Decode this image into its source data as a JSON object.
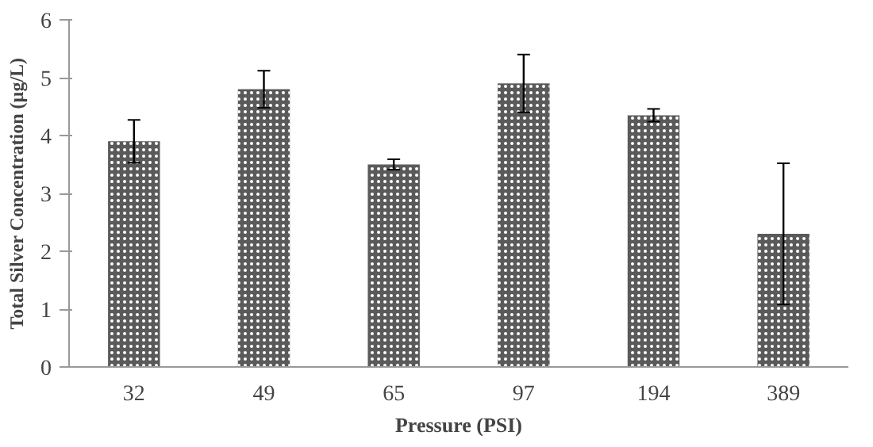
{
  "chart_data": {
    "type": "bar",
    "xlabel": "Pressure (PSI)",
    "ylabel": "Total Silver Concentration (µg/L)",
    "categories": [
      "32",
      "49",
      "65",
      "97",
      "194",
      "389"
    ],
    "values": [
      3.9,
      4.8,
      3.5,
      4.9,
      4.35,
      2.3
    ],
    "errors": [
      0.37,
      0.32,
      0.09,
      0.5,
      0.11,
      1.22
    ],
    "color": "#5a5a5a",
    "ylim": [
      0,
      6
    ],
    "yticks": [
      0,
      1,
      2,
      3,
      4,
      5,
      6
    ],
    "grid": false
  }
}
